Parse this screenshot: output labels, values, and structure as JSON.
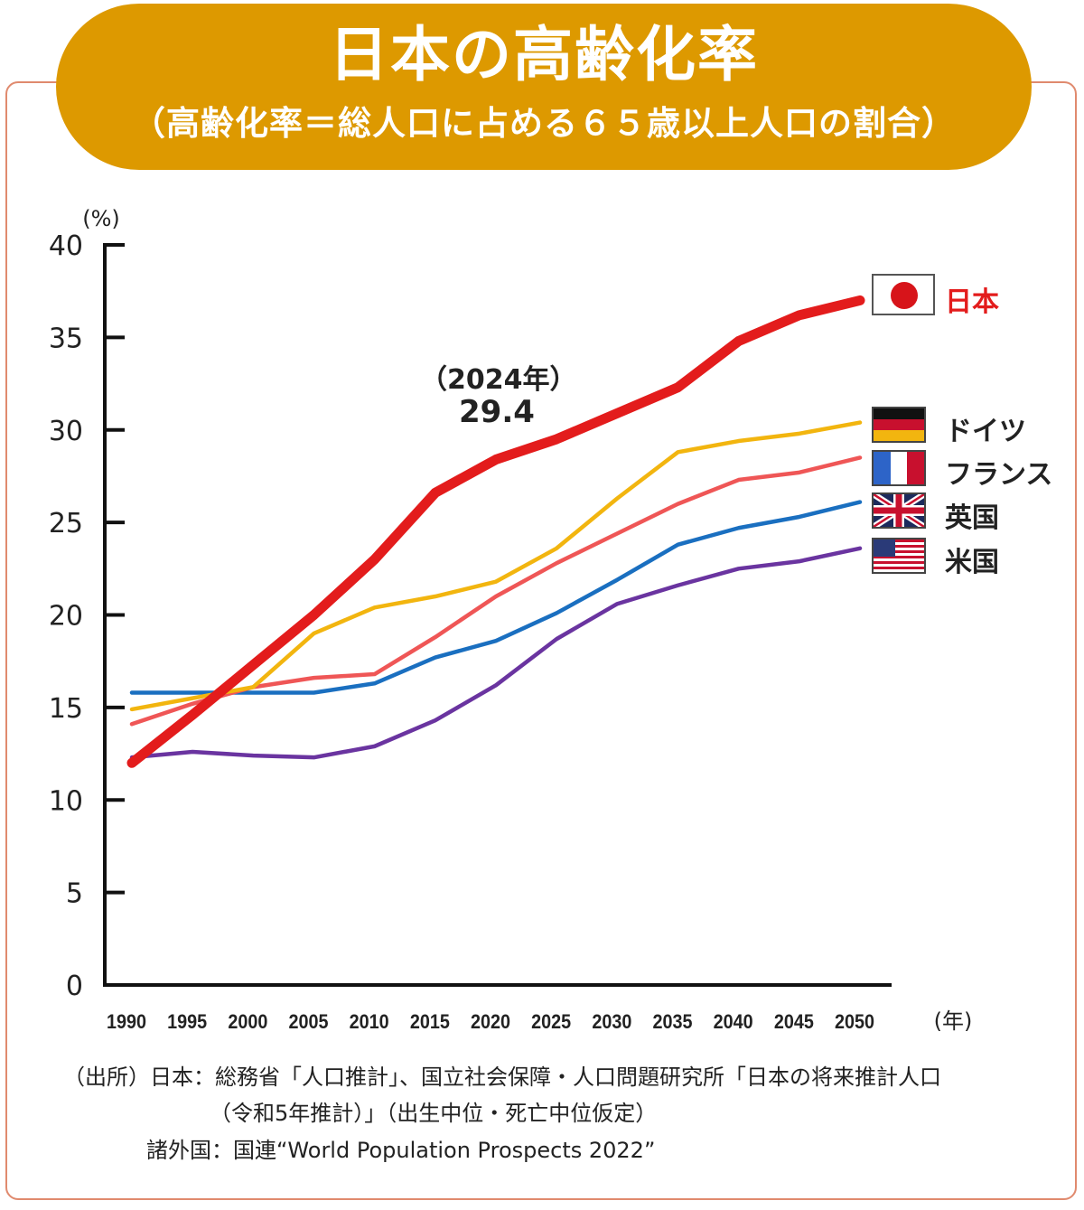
{
  "header": {
    "title": "日本の高齢化率",
    "subtitle": "（高齢化率＝総人口に占める６５歳以上人口の割合）"
  },
  "chart_data": {
    "type": "line",
    "title": "日本の高齢化率",
    "subtitle": "（高齢化率＝総人口に占める６５歳以上人口の割合）",
    "xlabel": "(年)",
    "ylabel": "(%)",
    "ylim": [
      0,
      40
    ],
    "xlim": [
      1990,
      2050
    ],
    "yticks": [
      "0",
      "5",
      "10",
      "15",
      "20",
      "25",
      "30",
      "35",
      "40"
    ],
    "x": [
      "1990",
      "1995",
      "2000",
      "2005",
      "2010",
      "2015",
      "2020",
      "2025",
      "2030",
      "2035",
      "2040",
      "2045",
      "2050"
    ],
    "grid": false,
    "legend_position": "right",
    "annotation": {
      "year_label": "（2024年）",
      "value_label": "29.4",
      "x": 2024,
      "y": 29.4
    },
    "series": [
      {
        "name": "日本",
        "flag": "japan-flag",
        "color": "#e31c1c",
        "emphasis": true,
        "values": [
          12.0,
          14.6,
          17.3,
          20.0,
          23.0,
          26.6,
          28.4,
          29.5,
          30.9,
          32.3,
          34.8,
          36.2,
          37.0
        ]
      },
      {
        "name": "ドイツ",
        "flag": "germany-flag",
        "color": "#f2b50f",
        "emphasis": false,
        "values": [
          14.9,
          15.5,
          16.1,
          19.0,
          20.4,
          21.0,
          21.8,
          23.6,
          26.3,
          28.8,
          29.4,
          29.8,
          30.4
        ]
      },
      {
        "name": "フランス",
        "flag": "france-flag",
        "color": "#ef5656",
        "emphasis": false,
        "values": [
          14.1,
          15.2,
          16.1,
          16.6,
          16.8,
          18.8,
          21.0,
          22.8,
          24.4,
          26.0,
          27.3,
          27.7,
          28.5
        ]
      },
      {
        "name": "英国",
        "flag": "uk-flag",
        "color": "#1a6fc0",
        "emphasis": false,
        "values": [
          15.8,
          15.8,
          15.8,
          15.8,
          16.3,
          17.7,
          18.6,
          20.1,
          21.9,
          23.8,
          24.7,
          25.3,
          26.1
        ]
      },
      {
        "name": "米国",
        "flag": "us-flag",
        "color": "#6a34a0",
        "emphasis": false,
        "values": [
          12.3,
          12.6,
          12.4,
          12.3,
          12.9,
          14.3,
          16.2,
          18.7,
          20.6,
          21.6,
          22.5,
          22.9,
          23.6
        ]
      }
    ]
  },
  "source": {
    "line1": "（出所）日本：総務省「人口推計」、国立社会保障・人口問題研究所「日本の将来推計人口",
    "line2": "（令和5年推計）」（出生中位・死亡中位仮定）",
    "line3": "諸外国：国連“World Population Prospects 2022”"
  }
}
